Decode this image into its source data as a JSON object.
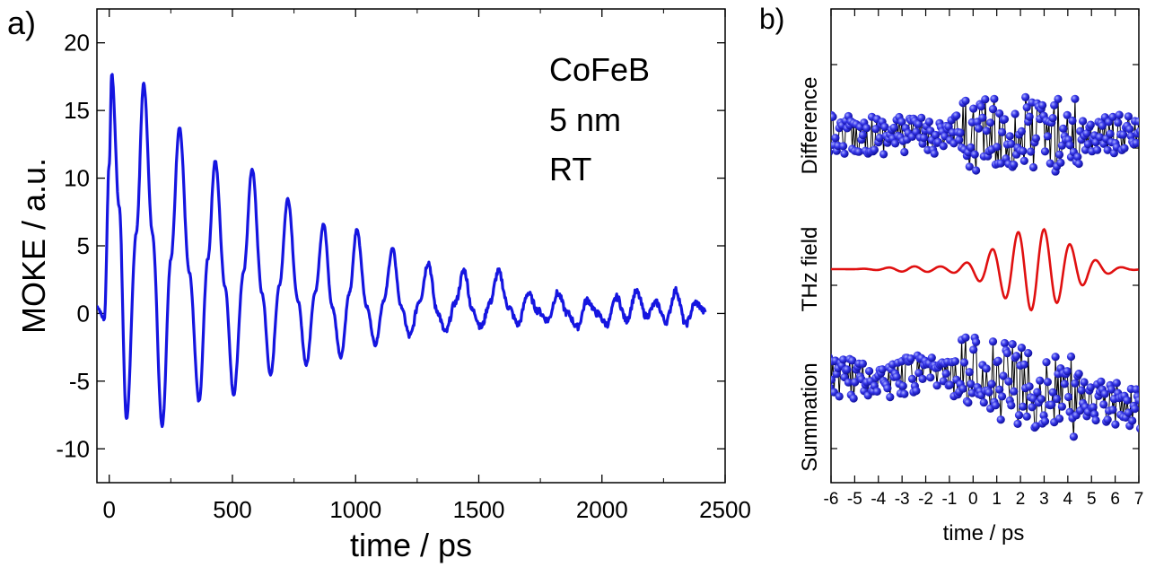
{
  "panels": {
    "a": {
      "label": "a)",
      "annotation": [
        "CoFeB",
        "5 nm",
        "RT"
      ]
    },
    "b": {
      "label": "b)"
    }
  },
  "chart_data": [
    {
      "type": "line",
      "panel": "a)",
      "xlabel": "time / ps",
      "ylabel": "MOKE / a.u.",
      "xlim": [
        -50,
        2500
      ],
      "ylim": [
        -12.5,
        22.5
      ],
      "xticks": [
        0,
        500,
        1000,
        1500,
        2000,
        2500
      ],
      "yticks": [
        -10,
        -5,
        0,
        5,
        10,
        15,
        20
      ],
      "color": "#1515e0",
      "grid": false,
      "series": [
        {
          "x": [
            -50,
            -20,
            0,
            10,
            40,
            70,
            110,
            140,
            175,
            215,
            250,
            285,
            325,
            365,
            400,
            430,
            470,
            505,
            545,
            580,
            620,
            655,
            690,
            725,
            765,
            800,
            835,
            870,
            905,
            940,
            975,
            1005,
            1045,
            1080,
            1115,
            1150,
            1185,
            1220,
            1260,
            1295,
            1330,
            1365,
            1405,
            1440,
            1475,
            1510,
            1545,
            1580,
            1620,
            1660,
            1700,
            1740,
            1780,
            1820,
            1860,
            1900,
            1940,
            1980,
            2020,
            2060,
            2100,
            2140,
            2180,
            2220,
            2260,
            2300,
            2340,
            2380,
            2420
          ],
          "y": [
            0.5,
            -0.4,
            11,
            17.7,
            8,
            -7.8,
            6,
            17,
            6,
            -8.3,
            4,
            13.8,
            3,
            -6.5,
            4,
            11.3,
            2,
            -6,
            3,
            10.7,
            1.5,
            -4.6,
            2,
            8.5,
            1,
            -3.8,
            1.5,
            6.6,
            0.5,
            -3.2,
            1.5,
            6.2,
            0.5,
            -2.3,
            1,
            4.8,
            0.5,
            -1.7,
            1,
            3.8,
            0.2,
            -1.4,
            0.8,
            3.2,
            0.2,
            -1,
            0.8,
            3.1,
            0.5,
            -0.8,
            1.5,
            0.2,
            -0.5,
            1.5,
            0,
            -1,
            1,
            0,
            -0.8,
            1.2,
            -0.5,
            1.6,
            -0.2,
            0.8,
            -0.6,
            1.7,
            -0.8,
            0.8,
            0.1
          ]
        }
      ]
    },
    {
      "type": "scatter",
      "panel": "b)",
      "xlabel": "time / ps",
      "xlim": [
        -6,
        7
      ],
      "xticks": [
        -6,
        -5,
        -4,
        -3,
        -2,
        -1,
        0,
        1,
        2,
        3,
        4,
        5,
        6,
        7
      ],
      "series": [
        {
          "name": "Difference",
          "marker": "blue-sphere",
          "line": "black"
        },
        {
          "name": "THz field",
          "marker": "none",
          "line": "#e01010"
        },
        {
          "name": "Summation",
          "marker": "blue-sphere",
          "line": "black"
        }
      ]
    }
  ]
}
